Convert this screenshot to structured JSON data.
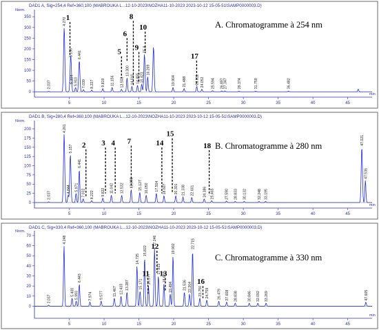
{
  "chart_data": [
    {
      "type": "line",
      "header": "DAD1 A, Sig=254,4 Ref=360,100 (MABROUKA L...12-10-2023\\NOZHA11-10-2023 2023-10-12 15-05-51\\SAMP0000003.D)",
      "title": "A. Chromatogramme à 254 nm",
      "ylabel": "Norm.",
      "xlabel": "min",
      "ylim": [
        -25,
        370
      ],
      "xlim": [
        0,
        48.5
      ],
      "yticks": [
        0,
        50,
        100,
        150,
        200,
        250,
        300,
        350
      ],
      "xticks": [
        5,
        10,
        15,
        20,
        25,
        30,
        35,
        40,
        45
      ],
      "peaks": [
        {
          "t": 2.037,
          "h": 2,
          "label": "2.037"
        },
        {
          "t": 4.27,
          "h": 300,
          "label": "4.270"
        },
        {
          "t": 5.2,
          "h": 155,
          "label": "5.156"
        },
        {
          "t": 5.3,
          "h": 30,
          "label": "5.304"
        },
        {
          "t": 5.9,
          "h": 20,
          "label": "5.910"
        },
        {
          "t": 6.441,
          "h": 145,
          "label": "6.441"
        },
        {
          "t": 7.039,
          "h": 10,
          "label": "7.039"
        },
        {
          "t": 8.227,
          "h": 8,
          "label": "8.227"
        },
        {
          "t": 9.819,
          "h": 15,
          "label": "9.819"
        },
        {
          "t": 11.156,
          "h": 20,
          "label": "11.156"
        },
        {
          "t": 12.5,
          "h": 12,
          "label": "12.508"
        },
        {
          "t": 13.3,
          "h": 65,
          "label": "13.300"
        },
        {
          "t": 14.0,
          "h": 25,
          "label": "14.010"
        },
        {
          "t": 14.8,
          "h": 30,
          "label": "14.855"
        },
        {
          "t": 15.4,
          "h": 35,
          "label": "15.423"
        },
        {
          "t": 15.8,
          "h": 175,
          "label": "15.8"
        },
        {
          "t": 16.269,
          "h": 70,
          "label": "16.269"
        },
        {
          "t": 17.1,
          "h": 210,
          "label": ""
        },
        {
          "t": 19.904,
          "h": 20,
          "label": "19.904"
        },
        {
          "t": 21.488,
          "h": 15,
          "label": "21.488"
        },
        {
          "t": 23.311,
          "h": 25,
          "label": "23.311"
        },
        {
          "t": 24.052,
          "h": 12,
          "label": "24.052"
        },
        {
          "t": 25.594,
          "h": 5,
          "label": "25.594"
        },
        {
          "t": 26.897,
          "h": 4,
          "label": "26.897"
        },
        {
          "t": 27.347,
          "h": 4,
          "label": "27.347"
        },
        {
          "t": 29.374,
          "h": 3,
          "label": "29.374"
        },
        {
          "t": 31.759,
          "h": 3,
          "label": "31.759"
        },
        {
          "t": 36.482,
          "h": 3,
          "label": "36.482"
        },
        {
          "t": 46.5,
          "h": 12,
          "label": ""
        }
      ],
      "annotations": [
        {
          "label": "1",
          "t": 5.1,
          "y_top": 335,
          "y_bottom": 165
        },
        {
          "label": "5",
          "t": 12.5,
          "y_top": 175,
          "y_bottom": 65
        },
        {
          "label": "6",
          "t": 13.3,
          "y_top": 260,
          "y_bottom": 140
        },
        {
          "label": "8",
          "t": 14.2,
          "y_top": 340,
          "y_bottom": 30
        },
        {
          "label": "9",
          "t": 15.0,
          "y_top": 195,
          "y_bottom": 45
        },
        {
          "label": "10",
          "t": 15.9,
          "y_top": 290,
          "y_bottom": 180
        },
        {
          "label": "17",
          "t": 23.3,
          "y_top": 155,
          "y_bottom": 30
        }
      ]
    },
    {
      "type": "line",
      "header": "DAD1 B, Sig=280,4 Ref=360,100 (MABROUKA L...12-10-2023\\NOZHA11-10-2023 2023-10-12 15-05-51\\SAMP0000003.D)",
      "title": "B. Chromatogramme à 280 nm",
      "ylabel": "Norm.",
      "xlabel": "min",
      "ylim": [
        -15,
        215
      ],
      "xlim": [
        0,
        48.5
      ],
      "yticks": [
        0,
        25,
        50,
        75,
        100,
        125,
        150,
        175,
        200
      ],
      "xticks": [
        5,
        10,
        15,
        20,
        25,
        30,
        35,
        40,
        45
      ],
      "peaks": [
        {
          "t": 2.037,
          "h": 2,
          "label": "2.037"
        },
        {
          "t": 4.261,
          "h": 185,
          "label": "4.261"
        },
        {
          "t": 4.84,
          "h": 20,
          "label": "4.844"
        },
        {
          "t": 5.157,
          "h": 130,
          "label": "5.157"
        },
        {
          "t": 5.971,
          "h": 25,
          "label": "5.971"
        },
        {
          "t": 6.441,
          "h": 90,
          "label": "6.441"
        },
        {
          "t": 7.0,
          "h": 10,
          "label": "7.032"
        },
        {
          "t": 8.222,
          "h": 5,
          "label": "8.222"
        },
        {
          "t": 9.822,
          "h": 12,
          "label": "9.822"
        },
        {
          "t": 11.042,
          "h": 20,
          "label": "11.042"
        },
        {
          "t": 12.532,
          "h": 20,
          "label": "12.532"
        },
        {
          "t": 13.89,
          "h": 35,
          "label": "13.890"
        },
        {
          "t": 15.127,
          "h": 28,
          "label": "15.127"
        },
        {
          "t": 16.05,
          "h": 20,
          "label": "16.050"
        },
        {
          "t": 17.504,
          "h": 25,
          "label": "17.504"
        },
        {
          "t": 18.607,
          "h": 18,
          "label": "18.607"
        },
        {
          "t": 20.301,
          "h": 18,
          "label": "20.301"
        },
        {
          "t": 21.338,
          "h": 15,
          "label": "21.338"
        },
        {
          "t": 22.601,
          "h": 14,
          "label": "22.601"
        },
        {
          "t": 24.386,
          "h": 10,
          "label": "24.386"
        },
        {
          "t": 25.465,
          "h": 5,
          "label": "25.465"
        },
        {
          "t": 27.59,
          "h": 4,
          "label": "27.590"
        },
        {
          "t": 28.833,
          "h": 3,
          "label": "28.833"
        },
        {
          "t": 30.132,
          "h": 3,
          "label": "30.132"
        },
        {
          "t": 32.248,
          "h": 3,
          "label": "32.248"
        },
        {
          "t": 33.195,
          "h": 3,
          "label": "33.195"
        },
        {
          "t": 47.021,
          "h": 150,
          "label": "47.021"
        },
        {
          "t": 47.536,
          "h": 60,
          "label": "47.536"
        }
      ],
      "annotations": [
        {
          "label": "2",
          "t": 7.4,
          "y_top": 150,
          "y_bottom": 15
        },
        {
          "label": "3",
          "t": 10.2,
          "y_top": 155,
          "y_bottom": 25
        },
        {
          "label": "4",
          "t": 11.6,
          "y_top": 155,
          "y_bottom": 25
        },
        {
          "label": "7",
          "t": 13.9,
          "y_top": 160,
          "y_bottom": 40
        },
        {
          "label": "14",
          "t": 18.3,
          "y_top": 155,
          "y_bottom": 25
        },
        {
          "label": "15",
          "t": 19.8,
          "y_top": 180,
          "y_bottom": 25
        },
        {
          "label": "18",
          "t": 25.1,
          "y_top": 148,
          "y_bottom": 20
        }
      ]
    },
    {
      "type": "line",
      "header": "DAD1 C, Sig=330,4 Ref=360,100 (MABROUKA L...12-10-2023\\NOZHA11-10-2023 2023-10-12 15-05-51\\SAMP0000003.D)",
      "title": "C. Chromatogramme à 330 nm",
      "ylabel": "Norm.",
      "xlabel": "min",
      "ylim": [
        -12,
        72
      ],
      "xlim": [
        0,
        48.5
      ],
      "yticks": [
        0,
        10,
        20,
        30,
        40,
        50,
        60,
        70
      ],
      "xticks": [
        5,
        10,
        15,
        20,
        25,
        30,
        35,
        40,
        45
      ],
      "peaks": [
        {
          "t": 2.037,
          "h": 1,
          "label": "2.037"
        },
        {
          "t": 4.248,
          "h": 60,
          "label": "4.248"
        },
        {
          "t": 5.4,
          "h": 8,
          "label": "5.400"
        },
        {
          "t": 5.993,
          "h": 5,
          "label": "5.993"
        },
        {
          "t": 6.443,
          "h": 22,
          "label": "6.443"
        },
        {
          "t": 7.974,
          "h": 4,
          "label": "7.974"
        },
        {
          "t": 9.577,
          "h": 5,
          "label": "9.577"
        },
        {
          "t": 11.467,
          "h": 8,
          "label": "11.467"
        },
        {
          "t": 12.433,
          "h": 10,
          "label": "12.433"
        },
        {
          "t": 13.287,
          "h": 14,
          "label": "13.287"
        },
        {
          "t": 14.725,
          "h": 40,
          "label": "14.725"
        },
        {
          "t": 15.171,
          "h": 15,
          "label": "15.171"
        },
        {
          "t": 15.822,
          "h": 48,
          "label": "15.822"
        },
        {
          "t": 16.377,
          "h": 20,
          "label": "16.377"
        },
        {
          "t": 17.246,
          "h": 58,
          "label": "17.246"
        },
        {
          "t": 17.8,
          "h": 30,
          "label": "17.813"
        },
        {
          "t": 18.6,
          "h": 22,
          "label": "18.607"
        },
        {
          "t": 19.902,
          "h": 50,
          "label": "19.902"
        },
        {
          "t": 19.5,
          "h": 12,
          "label": "19.494"
        },
        {
          "t": 21.536,
          "h": 14,
          "label": "21.536"
        },
        {
          "t": 22.715,
          "h": 55,
          "label": "22.715"
        },
        {
          "t": 22.264,
          "h": 12,
          "label": "22.264"
        },
        {
          "t": 23.75,
          "h": 8,
          "label": "23.750"
        },
        {
          "t": 24.759,
          "h": 6,
          "label": "24.759"
        },
        {
          "t": 26.479,
          "h": 5,
          "label": "26.479"
        },
        {
          "t": 27.608,
          "h": 4,
          "label": "27.608"
        },
        {
          "t": 28.838,
          "h": 3,
          "label": "28.838"
        },
        {
          "t": 30.846,
          "h": 3,
          "label": "30.846"
        },
        {
          "t": 32.092,
          "h": 3,
          "label": "32.092"
        },
        {
          "t": 33.269,
          "h": 3,
          "label": "33.269"
        },
        {
          "t": 47.605,
          "h": 4,
          "label": "47.605"
        }
      ],
      "annotations": [
        {
          "label": "11",
          "t": 16.3,
          "y_top": 30,
          "y_bottom": 12
        },
        {
          "label": "12",
          "t": 17.6,
          "y_top": 57,
          "y_bottom": 33
        },
        {
          "label": "13",
          "t": 18.8,
          "y_top": 30,
          "y_bottom": 15
        },
        {
          "label": "16",
          "t": 24.2,
          "y_top": 22,
          "y_bottom": 8
        }
      ]
    }
  ]
}
